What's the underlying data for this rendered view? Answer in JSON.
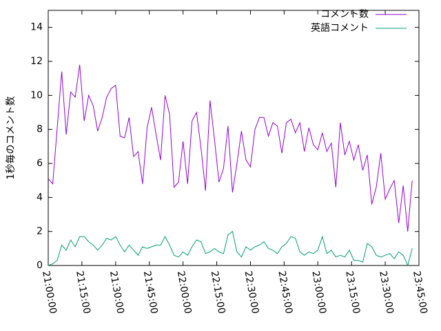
{
  "chart_data": {
    "type": "line",
    "y_label": "1秒毎のコメント数",
    "x": [
      "21:00:00",
      "21:02:00",
      "21:04:00",
      "21:06:00",
      "21:08:00",
      "21:10:00",
      "21:12:00",
      "21:14:00",
      "21:16:00",
      "21:18:00",
      "21:20:00",
      "21:22:00",
      "21:24:00",
      "21:26:00",
      "21:28:00",
      "21:30:00",
      "21:32:00",
      "21:34:00",
      "21:36:00",
      "21:38:00",
      "21:40:00",
      "21:42:00",
      "21:44:00",
      "21:46:00",
      "21:48:00",
      "21:50:00",
      "21:52:00",
      "21:54:00",
      "21:56:00",
      "21:58:00",
      "22:00:00",
      "22:02:00",
      "22:04:00",
      "22:06:00",
      "22:08:00",
      "22:10:00",
      "22:12:00",
      "22:14:00",
      "22:16:00",
      "22:18:00",
      "22:20:00",
      "22:22:00",
      "22:24:00",
      "22:26:00",
      "22:28:00",
      "22:30:00",
      "22:32:00",
      "22:34:00",
      "22:36:00",
      "22:38:00",
      "22:40:00",
      "22:42:00",
      "22:44:00",
      "22:46:00",
      "22:48:00",
      "22:50:00",
      "22:52:00",
      "22:54:00",
      "22:56:00",
      "22:58:00",
      "23:00:00",
      "23:02:00",
      "23:04:00",
      "23:06:00",
      "23:08:00",
      "23:10:00",
      "23:12:00",
      "23:14:00",
      "23:16:00",
      "23:18:00",
      "23:20:00",
      "23:22:00",
      "23:24:00",
      "23:26:00",
      "23:28:00",
      "23:30:00",
      "23:32:00",
      "23:34:00",
      "23:36:00",
      "23:38:00",
      "23:40:00",
      "23:42:00"
    ],
    "series": [
      {
        "name": "コメント数",
        "color": "#9400d3",
        "values": [
          5.1,
          4.8,
          8.1,
          11.4,
          7.7,
          10.2,
          9.9,
          11.8,
          8.5,
          10.0,
          9.4,
          7.9,
          8.7,
          9.9,
          10.4,
          10.6,
          7.6,
          7.5,
          8.7,
          6.4,
          6.7,
          4.8,
          8.1,
          9.3,
          7.7,
          6.2,
          10.0,
          8.9,
          4.6,
          4.9,
          7.3,
          4.8,
          8.5,
          9.0,
          6.9,
          4.4,
          9.7,
          7.4,
          4.9,
          5.7,
          8.2,
          4.3,
          6.0,
          7.9,
          6.2,
          5.8,
          8.0,
          8.7,
          8.7,
          7.6,
          8.4,
          8.2,
          6.6,
          8.4,
          8.6,
          7.8,
          8.4,
          6.7,
          8.1,
          7.1,
          6.8,
          7.8,
          6.7,
          7.2,
          4.6,
          8.4,
          6.5,
          7.3,
          6.2,
          7.1,
          5.6,
          6.5,
          3.6,
          4.6,
          6.6,
          3.9,
          4.5,
          5.0,
          2.5,
          4.7,
          2.0,
          5.0
        ]
      },
      {
        "name": "英語コメント",
        "color": "#009e73",
        "values": [
          0,
          0.1,
          0.3,
          1.2,
          0.9,
          1.5,
          1.1,
          1.7,
          1.7,
          1.4,
          1.2,
          0.9,
          1.2,
          1.6,
          1.5,
          1.7,
          1.2,
          0.8,
          1.2,
          0.9,
          0.6,
          1.1,
          1.0,
          1.1,
          1.2,
          1.2,
          1.7,
          1.2,
          0.6,
          0.5,
          0.8,
          0.6,
          1.1,
          1.5,
          1.4,
          0.7,
          0.8,
          1.0,
          0.8,
          0.7,
          1.8,
          2.0,
          0.8,
          0.5,
          1.1,
          0.9,
          1.1,
          1.2,
          1.4,
          1.0,
          0.9,
          0.7,
          1.1,
          1.3,
          1.7,
          1.6,
          0.8,
          0.6,
          0.8,
          0.7,
          0.9,
          1.7,
          0.7,
          0.9,
          0.5,
          0.6,
          0.5,
          0.9,
          0.3,
          0.3,
          0.2,
          1.3,
          1.1,
          0.6,
          0.5,
          0.6,
          0.7,
          0.4,
          0.8,
          0.6,
          0.0,
          1.0
        ]
      }
    ],
    "xlim": [
      "21:00:00",
      "23:45:00"
    ],
    "xticks": [
      "21:00:00",
      "21:15:00",
      "21:30:00",
      "21:45:00",
      "22:00:00",
      "22:15:00",
      "22:30:00",
      "22:45:00",
      "23:00:00",
      "23:15:00",
      "23:30:00",
      "23:45:00"
    ],
    "ylim": [
      0,
      15
    ],
    "yticks": [
      0,
      2,
      4,
      6,
      8,
      10,
      12,
      14
    ],
    "legend": "top-right"
  }
}
